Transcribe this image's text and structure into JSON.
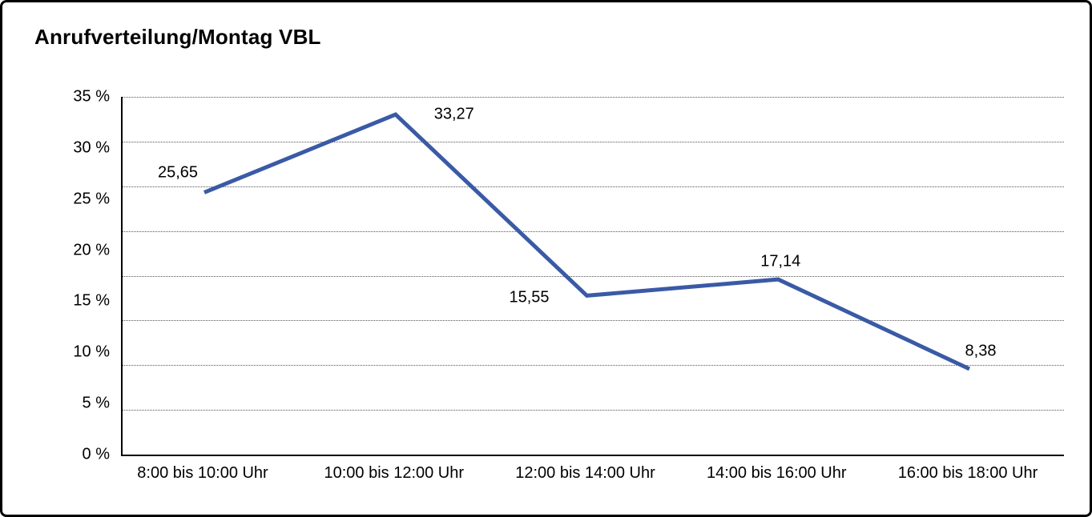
{
  "title": "Anrufverteilung/Montag VBL",
  "colors": {
    "line": "#3A5AA6",
    "text": "#000000",
    "grid": "#555555",
    "border": "#000000",
    "background": "#FFFFFF"
  },
  "chart_data": {
    "type": "line",
    "title": "Anrufverteilung/Montag VBL",
    "categories": [
      "8:00 bis 10:00 Uhr",
      "10:00 bis 12:00 Uhr",
      "12:00 bis 14:00 Uhr",
      "14:00 bis 16:00 Uhr",
      "16:00 bis 18:00 Uhr"
    ],
    "values": [
      25.65,
      33.27,
      15.55,
      17.14,
      8.38
    ],
    "value_labels": [
      "25,65",
      "33,27",
      "15,55",
      "17,14",
      "8,38"
    ],
    "xlabel": "",
    "ylabel": "",
    "ylim": [
      0,
      35
    ],
    "y_ticks": [
      "35 %",
      "30 %",
      "25 %",
      "20 %",
      "15 %",
      "10 %",
      "5 %",
      "0 %"
    ],
    "y_tick_values": [
      35,
      30,
      25,
      20,
      15,
      10,
      5,
      0
    ],
    "grid": "horizontal dotted, 8 divisions",
    "legend_position": "none",
    "line_color": "#3A5AA6",
    "line_width": 5,
    "markers": false
  }
}
